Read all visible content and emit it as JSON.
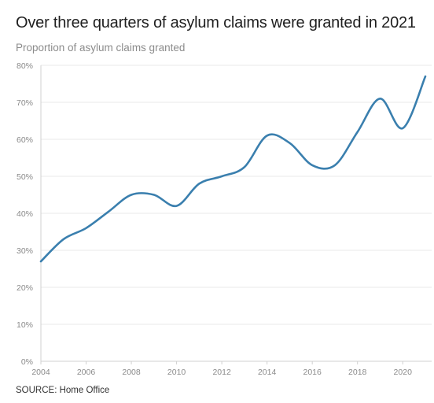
{
  "title": "Over three quarters of asylum claims were granted in 2021",
  "subtitle": "Proportion of asylum claims granted",
  "source": "SOURCE: Home Office",
  "chart_data": {
    "type": "line",
    "title": "Over three quarters of asylum claims were granted in 2021",
    "subtitle": "Proportion of asylum claims granted",
    "xlabel": "",
    "ylabel": "",
    "x": [
      2004,
      2005,
      2006,
      2007,
      2008,
      2009,
      2010,
      2011,
      2012,
      2013,
      2014,
      2015,
      2016,
      2017,
      2018,
      2019,
      2020,
      2021
    ],
    "series": [
      {
        "values": [
          27,
          33,
          36,
          40.5,
          45,
          45,
          42,
          48,
          50,
          52.5,
          61,
          59,
          53,
          53,
          62,
          71,
          63,
          77
        ],
        "color": "#3a7fae"
      }
    ],
    "xlim": [
      2004,
      2021
    ],
    "ylim": [
      0,
      80
    ],
    "xticks": [
      "2004",
      "2006",
      "2008",
      "2010",
      "2012",
      "2014",
      "2016",
      "2018",
      "2020"
    ],
    "yticks": [
      "0%",
      "10%",
      "20%",
      "30%",
      "40%",
      "50%",
      "60%",
      "70%",
      "80%"
    ],
    "grid": true,
    "legend": "none"
  }
}
